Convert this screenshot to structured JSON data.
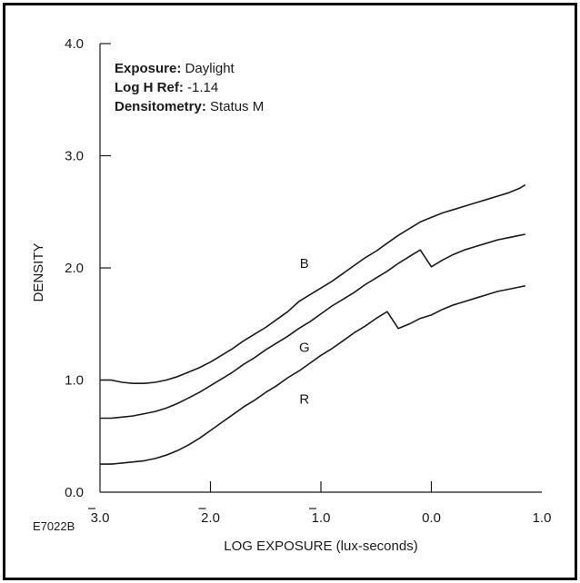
{
  "chart_data": {
    "type": "line",
    "ylabel": "DENSITY",
    "xlabel": "LOG EXPOSURE (lux-seconds)",
    "xlim": [
      -3.0,
      1.0
    ],
    "ylim": [
      0.0,
      4.0
    ],
    "grid": false,
    "x_ticks": [
      {
        "value": -3.0,
        "label": "3.0",
        "bar": true
      },
      {
        "value": -2.0,
        "label": "2.0",
        "bar": true
      },
      {
        "value": -1.0,
        "label": "1.0",
        "bar": true
      },
      {
        "value": 0.0,
        "label": "0.0",
        "bar": false
      },
      {
        "value": 1.0,
        "label": "1.0",
        "bar": false
      }
    ],
    "y_ticks": [
      {
        "value": 0.0,
        "label": "0.0"
      },
      {
        "value": 1.0,
        "label": "1.0"
      },
      {
        "value": 2.0,
        "label": "2.0"
      },
      {
        "value": 3.0,
        "label": "3.0"
      },
      {
        "value": 4.0,
        "label": "4.0"
      }
    ],
    "info_box": [
      {
        "key": "Exposure:",
        "value": "Daylight"
      },
      {
        "key": "Log H Ref:",
        "value": "-1.14"
      },
      {
        "key": "Densitometry:",
        "value": "Status M"
      }
    ],
    "series": [
      {
        "name": "B",
        "color": "#1a1a1a",
        "label_at": [
          -1.15,
          2.0
        ],
        "x": [
          -3.0,
          -2.95,
          -2.9,
          -2.8,
          -2.7,
          -2.6,
          -2.5,
          -2.4,
          -2.3,
          -2.2,
          -2.1,
          -2.0,
          -1.9,
          -1.8,
          -1.7,
          -1.6,
          -1.5,
          -1.4,
          -1.3,
          -1.2,
          -1.1,
          -1.0,
          -0.9,
          -0.8,
          -0.7,
          -0.6,
          -0.5,
          -0.4,
          -0.3,
          -0.2,
          -0.1,
          0.0,
          0.1,
          0.2,
          0.3,
          0.4,
          0.5,
          0.6,
          0.7,
          0.8,
          0.85
        ],
        "values": [
          1.0,
          1.0,
          1.0,
          0.98,
          0.97,
          0.97,
          0.98,
          1.0,
          1.03,
          1.07,
          1.11,
          1.16,
          1.22,
          1.28,
          1.35,
          1.41,
          1.47,
          1.54,
          1.61,
          1.7,
          1.76,
          1.82,
          1.88,
          1.95,
          2.02,
          2.09,
          2.15,
          2.22,
          2.29,
          2.35,
          2.41,
          2.45,
          2.49,
          2.52,
          2.55,
          2.58,
          2.61,
          2.64,
          2.67,
          2.71,
          2.74
        ]
      },
      {
        "name": "G",
        "color": "#1a1a1a",
        "label_at": [
          -1.15,
          1.25
        ],
        "x": [
          -3.0,
          -2.9,
          -2.8,
          -2.7,
          -2.6,
          -2.5,
          -2.4,
          -2.3,
          -2.2,
          -2.1,
          -2.0,
          -1.9,
          -1.8,
          -1.7,
          -1.6,
          -1.5,
          -1.4,
          -1.3,
          -1.2,
          -1.1,
          -1.0,
          -0.9,
          -0.8,
          -0.7,
          -0.6,
          -0.5,
          -0.4,
          -0.3,
          -0.2,
          -0.1,
          0.0,
          0.1,
          0.2,
          0.3,
          0.4,
          0.5,
          0.6,
          0.7,
          0.8,
          0.85
        ],
        "values": [
          0.66,
          0.66,
          0.67,
          0.68,
          0.7,
          0.72,
          0.75,
          0.79,
          0.84,
          0.89,
          0.95,
          1.01,
          1.07,
          1.14,
          1.2,
          1.27,
          1.33,
          1.39,
          1.46,
          1.52,
          1.59,
          1.66,
          1.72,
          1.78,
          1.85,
          1.91,
          1.97,
          2.04,
          2.1,
          2.16,
          2.01,
          2.07,
          2.12,
          2.16,
          2.19,
          2.22,
          2.25,
          2.27,
          2.29,
          2.3
        ]
      },
      {
        "name": "R",
        "color": "#1a1a1a",
        "label_at": [
          -1.15,
          0.79
        ],
        "x": [
          -3.0,
          -2.9,
          -2.8,
          -2.7,
          -2.6,
          -2.5,
          -2.4,
          -2.3,
          -2.2,
          -2.1,
          -2.0,
          -1.9,
          -1.8,
          -1.7,
          -1.6,
          -1.5,
          -1.4,
          -1.3,
          -1.2,
          -1.1,
          -1.0,
          -0.9,
          -0.8,
          -0.7,
          -0.6,
          -0.5,
          -0.4,
          -0.3,
          -0.2,
          -0.1,
          0.0,
          0.1,
          0.2,
          0.3,
          0.4,
          0.5,
          0.6,
          0.7,
          0.8,
          0.85
        ],
        "values": [
          0.25,
          0.25,
          0.26,
          0.27,
          0.28,
          0.3,
          0.33,
          0.37,
          0.42,
          0.48,
          0.55,
          0.62,
          0.69,
          0.76,
          0.82,
          0.89,
          0.95,
          1.02,
          1.08,
          1.15,
          1.22,
          1.28,
          1.35,
          1.42,
          1.48,
          1.55,
          1.61,
          1.46,
          1.5,
          1.55,
          1.58,
          1.63,
          1.67,
          1.7,
          1.73,
          1.76,
          1.79,
          1.81,
          1.83,
          1.84
        ]
      }
    ]
  },
  "figure_id": "E7022B"
}
